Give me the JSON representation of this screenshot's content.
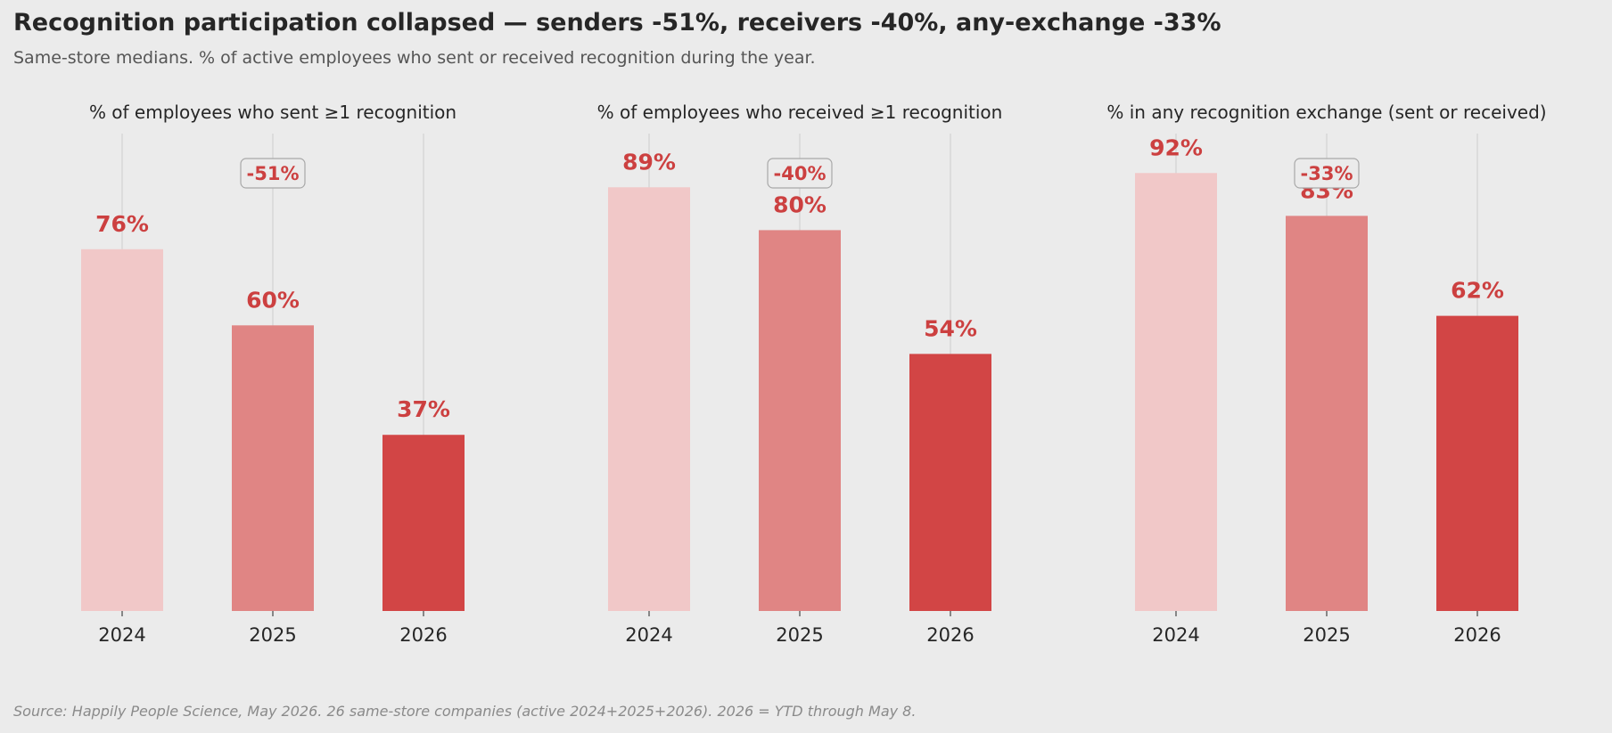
{
  "title": "Recognition participation collapsed — senders -51%, receivers -40%, any-exchange -33%",
  "subtitle": "Same-store medians. % of active employees who sent or received recognition during the year.",
  "source": "Source: Happily People Science, May 2026. 26 same-store companies (active 2024+2025+2026). 2026 = YTD through May 8.",
  "colors": {
    "background": "#ebebeb",
    "bar_2024": "#f1c8c8",
    "bar_2025": "#e08584",
    "bar_2026": "#d24545",
    "label": "#cc4040",
    "grid": "#d2d2d2"
  },
  "chart_data": [
    {
      "type": "bar",
      "title": "% of employees who sent ≥1 recognition",
      "categories": [
        "2024",
        "2025",
        "2026"
      ],
      "values": [
        76,
        60,
        37
      ],
      "value_labels": [
        "76%",
        "60%",
        "37%"
      ],
      "change_label": "-51%",
      "ylim": [
        0,
        100
      ],
      "grid": "vertical",
      "xlabel": "",
      "ylabel": ""
    },
    {
      "type": "bar",
      "title": "% of employees who received ≥1 recognition",
      "categories": [
        "2024",
        "2025",
        "2026"
      ],
      "values": [
        89,
        80,
        54
      ],
      "value_labels": [
        "89%",
        "80%",
        "54%"
      ],
      "change_label": "-40%",
      "ylim": [
        0,
        100
      ],
      "grid": "vertical",
      "xlabel": "",
      "ylabel": ""
    },
    {
      "type": "bar",
      "title": "% in any recognition exchange (sent or received)",
      "categories": [
        "2024",
        "2025",
        "2026"
      ],
      "values": [
        92,
        83,
        62
      ],
      "value_labels": [
        "92%",
        "83%",
        "62%"
      ],
      "change_label": "-33%",
      "ylim": [
        0,
        100
      ],
      "grid": "vertical",
      "xlabel": "",
      "ylabel": ""
    }
  ]
}
